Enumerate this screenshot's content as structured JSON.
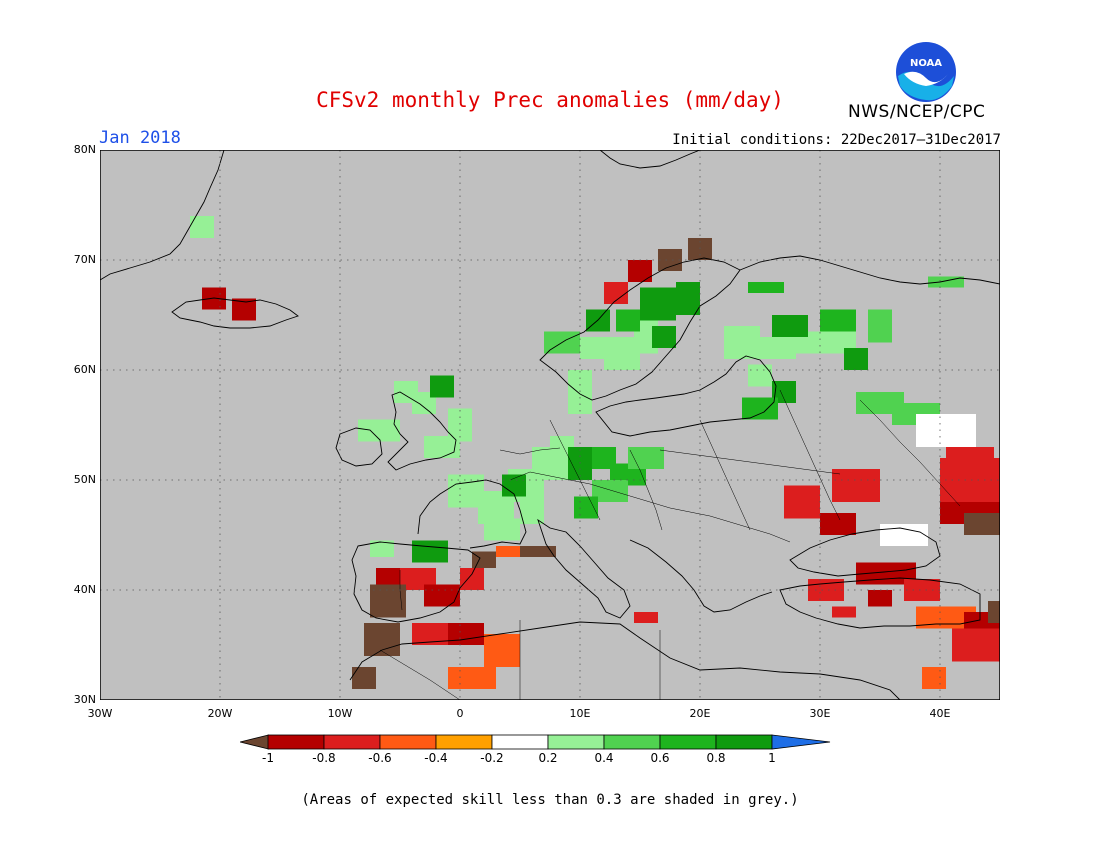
{
  "title": "CFSv2 monthly Prec anomalies (mm/day)",
  "agency": "NWS/NCEP/CPC",
  "logo_text": "NOAA",
  "month": "Jan 2018",
  "initial_conditions": "Initial conditions: 22Dec2017–31Dec2017",
  "note": "(Areas of expected skill less than 0.3 are shaded in grey.)",
  "map": {
    "lon_range": [
      -30,
      45
    ],
    "lat_range": [
      30,
      80
    ],
    "lat_ticks": [
      {
        "value": 80,
        "label": "80N"
      },
      {
        "value": 70,
        "label": "70N"
      },
      {
        "value": 60,
        "label": "60N"
      },
      {
        "value": 50,
        "label": "50N"
      },
      {
        "value": 40,
        "label": "40N"
      },
      {
        "value": 30,
        "label": "30N"
      }
    ],
    "lon_ticks": [
      {
        "value": -30,
        "label": "30W"
      },
      {
        "value": -20,
        "label": "20W"
      },
      {
        "value": -10,
        "label": "10W"
      },
      {
        "value": 0,
        "label": "0"
      },
      {
        "value": 10,
        "label": "10E"
      },
      {
        "value": 20,
        "label": "20E"
      },
      {
        "value": 30,
        "label": "30E"
      },
      {
        "value": 40,
        "label": "40E"
      }
    ],
    "grey_color": "#c0c0c0"
  },
  "colorbar": {
    "levels": [
      "-1",
      "-0.8",
      "-0.6",
      "-0.4",
      "-0.2",
      "0.2",
      "0.4",
      "0.6",
      "0.8",
      "1"
    ],
    "colors": [
      "#6b4530",
      "#b40000",
      "#dc1e1e",
      "#ff5a14",
      "#ffa000",
      "#ffffff",
      "#96f096",
      "#50d250",
      "#1eb41e",
      "#0f9b0f",
      "#1e6ee6"
    ]
  },
  "anomaly_cells": [
    {
      "lon": -22.5,
      "lat": 72,
      "w": 2,
      "h": 2,
      "cls": 1
    },
    {
      "lon": -21.5,
      "lat": 65.5,
      "w": 2,
      "h": 2,
      "cls": -4
    },
    {
      "lon": -19,
      "lat": 64.5,
      "w": 2,
      "h": 2,
      "cls": -4
    },
    {
      "lon": -5.5,
      "lat": 57,
      "w": 2,
      "h": 2,
      "cls": 1
    },
    {
      "lon": -4,
      "lat": 56,
      "w": 2,
      "h": 2,
      "cls": 1
    },
    {
      "lon": -2.5,
      "lat": 57.5,
      "w": 2,
      "h": 2,
      "cls": 4
    },
    {
      "lon": -8.5,
      "lat": 53.5,
      "w": 2,
      "h": 2,
      "cls": 1
    },
    {
      "lon": -7,
      "lat": 53.5,
      "w": 2,
      "h": 2,
      "cls": 1
    },
    {
      "lon": -3,
      "lat": 52,
      "w": 3,
      "h": 2,
      "cls": 1
    },
    {
      "lon": -1,
      "lat": 53.5,
      "w": 2,
      "h": 3,
      "cls": 1
    },
    {
      "lon": -1,
      "lat": 47.5,
      "w": 3,
      "h": 3,
      "cls": 1
    },
    {
      "lon": 1.5,
      "lat": 46,
      "w": 3,
      "h": 3,
      "cls": 1
    },
    {
      "lon": 4,
      "lat": 48,
      "w": 3,
      "h": 3,
      "cls": 1
    },
    {
      "lon": 6,
      "lat": 50,
      "w": 3,
      "h": 3,
      "cls": 1
    },
    {
      "lon": 2,
      "lat": 44.5,
      "w": 3,
      "h": 2,
      "cls": 1
    },
    {
      "lon": 5,
      "lat": 46,
      "w": 2,
      "h": 2,
      "cls": 1
    },
    {
      "lon": 7.5,
      "lat": 52,
      "w": 2,
      "h": 2,
      "cls": 1
    },
    {
      "lon": 3.5,
      "lat": 48.5,
      "w": 2,
      "h": 2,
      "cls": 4
    },
    {
      "lon": 9,
      "lat": 50,
      "w": 2,
      "h": 3,
      "cls": 4
    },
    {
      "lon": 11,
      "lat": 51,
      "w": 2,
      "h": 2,
      "cls": 3
    },
    {
      "lon": 12.5,
      "lat": 49.5,
      "w": 3,
      "h": 2,
      "cls": 3
    },
    {
      "lon": 11,
      "lat": 48,
      "w": 3,
      "h": 2,
      "cls": 2
    },
    {
      "lon": 14,
      "lat": 51,
      "w": 3,
      "h": 2,
      "cls": 2
    },
    {
      "lon": 9.5,
      "lat": 46.5,
      "w": 2,
      "h": 2,
      "cls": 3
    },
    {
      "lon": 9,
      "lat": 56,
      "w": 2,
      "h": 2,
      "cls": 1
    },
    {
      "lon": 9,
      "lat": 58,
      "w": 2,
      "h": 2,
      "cls": 1
    },
    {
      "lon": 12,
      "lat": 60,
      "w": 3,
      "h": 3,
      "cls": 1
    },
    {
      "lon": 10,
      "lat": 61,
      "w": 3,
      "h": 2,
      "cls": 1
    },
    {
      "lon": 14.5,
      "lat": 61.5,
      "w": 2,
      "h": 4,
      "cls": 1
    },
    {
      "lon": 16,
      "lat": 62,
      "w": 2,
      "h": 2,
      "cls": 4
    },
    {
      "lon": 15,
      "lat": 64.5,
      "w": 3,
      "h": 3,
      "cls": 4
    },
    {
      "lon": 18,
      "lat": 65,
      "w": 2,
      "h": 3,
      "cls": 4
    },
    {
      "lon": 13,
      "lat": 63.5,
      "w": 2,
      "h": 2,
      "cls": 3
    },
    {
      "lon": 7,
      "lat": 61.5,
      "w": 3,
      "h": 2,
      "cls": 2
    },
    {
      "lon": 10.5,
      "lat": 63.5,
      "w": 2,
      "h": 2,
      "cls": 4
    },
    {
      "lon": 12,
      "lat": 66,
      "w": 2,
      "h": 2,
      "cls": -3
    },
    {
      "lon": 14,
      "lat": 68,
      "w": 2,
      "h": 2,
      "cls": -4
    },
    {
      "lon": 16.5,
      "lat": 69,
      "w": 2,
      "h": 2,
      "cls": -5
    },
    {
      "lon": 19,
      "lat": 70,
      "w": 2,
      "h": 2,
      "cls": -5
    },
    {
      "lon": 22,
      "lat": 61,
      "w": 3,
      "h": 3,
      "cls": 1
    },
    {
      "lon": 25,
      "lat": 61,
      "w": 3,
      "h": 2,
      "cls": 1
    },
    {
      "lon": 28,
      "lat": 61.5,
      "w": 3,
      "h": 2,
      "cls": 1
    },
    {
      "lon": 31,
      "lat": 61.5,
      "w": 2,
      "h": 2,
      "cls": 1
    },
    {
      "lon": 26,
      "lat": 63,
      "w": 3,
      "h": 2,
      "cls": 4
    },
    {
      "lon": 30,
      "lat": 63.5,
      "w": 3,
      "h": 2,
      "cls": 3
    },
    {
      "lon": 34,
      "lat": 62.5,
      "w": 2,
      "h": 3,
      "cls": 2
    },
    {
      "lon": 32,
      "lat": 60,
      "w": 2,
      "h": 2,
      "cls": 4
    },
    {
      "lon": 24,
      "lat": 67,
      "w": 3,
      "h": 1,
      "cls": 3
    },
    {
      "lon": 24,
      "lat": 58.5,
      "w": 2,
      "h": 2,
      "cls": 1
    },
    {
      "lon": 26,
      "lat": 57,
      "w": 2,
      "h": 2,
      "cls": 4
    },
    {
      "lon": 23.5,
      "lat": 55.5,
      "w": 3,
      "h": 2,
      "cls": 3
    },
    {
      "lon": 33,
      "lat": 56,
      "w": 4,
      "h": 2,
      "cls": 2
    },
    {
      "lon": 36,
      "lat": 55,
      "w": 4,
      "h": 2,
      "cls": 2
    },
    {
      "lon": 39,
      "lat": 67.5,
      "w": 3,
      "h": 1,
      "cls": 2
    },
    {
      "lon": 27,
      "lat": 46.5,
      "w": 3,
      "h": 3,
      "cls": -3
    },
    {
      "lon": 31,
      "lat": 48,
      "w": 4,
      "h": 3,
      "cls": -3
    },
    {
      "lon": 30,
      "lat": 45,
      "w": 3,
      "h": 2,
      "cls": -4
    },
    {
      "lon": 40,
      "lat": 48,
      "w": 5,
      "h": 4,
      "cls": -3
    },
    {
      "lon": 43,
      "lat": 49,
      "w": 3,
      "h": 3,
      "cls": -3
    },
    {
      "lon": 40,
      "lat": 46,
      "w": 6,
      "h": 2,
      "cls": -4
    },
    {
      "lon": 42,
      "lat": 45,
      "w": 4,
      "h": 2,
      "cls": -5
    },
    {
      "lon": 40.5,
      "lat": 51,
      "w": 4,
      "h": 2,
      "cls": -3
    },
    {
      "lon": 29,
      "lat": 39,
      "w": 3,
      "h": 2,
      "cls": -3
    },
    {
      "lon": 33,
      "lat": 40.5,
      "w": 5,
      "h": 2,
      "cls": -4
    },
    {
      "lon": 37,
      "lat": 39,
      "w": 3,
      "h": 2,
      "cls": -3
    },
    {
      "lon": 34,
      "lat": 38.5,
      "w": 2,
      "h": 1.5,
      "cls": -4
    },
    {
      "lon": 31,
      "lat": 37.5,
      "w": 2,
      "h": 1,
      "cls": -3
    },
    {
      "lon": 38,
      "lat": 36.5,
      "w": 5,
      "h": 2,
      "cls": -2
    },
    {
      "lon": 42,
      "lat": 36,
      "w": 3,
      "h": 2,
      "cls": -4
    },
    {
      "lon": 41,
      "lat": 33.5,
      "w": 4,
      "h": 3,
      "cls": -3
    },
    {
      "lon": 38.5,
      "lat": 31,
      "w": 2,
      "h": 2,
      "cls": -2
    },
    {
      "lon": 44,
      "lat": 37,
      "w": 2,
      "h": 2,
      "cls": -5
    },
    {
      "lon": -7.5,
      "lat": 43,
      "w": 2,
      "h": 1.5,
      "cls": 1
    },
    {
      "lon": -4,
      "lat": 42.5,
      "w": 3,
      "h": 2,
      "cls": 4
    },
    {
      "lon": -7,
      "lat": 40,
      "w": 2,
      "h": 2,
      "cls": -4
    },
    {
      "lon": -5,
      "lat": 40,
      "w": 3,
      "h": 2,
      "cls": -3
    },
    {
      "lon": -3,
      "lat": 38.5,
      "w": 3,
      "h": 2,
      "cls": -4
    },
    {
      "lon": 0,
      "lat": 40,
      "w": 2,
      "h": 2,
      "cls": -3
    },
    {
      "lon": 1,
      "lat": 42,
      "w": 2,
      "h": 1.5,
      "cls": -5
    },
    {
      "lon": 5,
      "lat": 43,
      "w": 3,
      "h": 1,
      "cls": -5
    },
    {
      "lon": 3,
      "lat": 43,
      "w": 2,
      "h": 1,
      "cls": -2
    },
    {
      "lon": -7.5,
      "lat": 37.5,
      "w": 3,
      "h": 3,
      "cls": -5
    },
    {
      "lon": -8,
      "lat": 34,
      "w": 3,
      "h": 3,
      "cls": -5
    },
    {
      "lon": -9,
      "lat": 31,
      "w": 2,
      "h": 2,
      "cls": -5
    },
    {
      "lon": -4,
      "lat": 35,
      "w": 3,
      "h": 2,
      "cls": -3
    },
    {
      "lon": -1,
      "lat": 35,
      "w": 3,
      "h": 2,
      "cls": -4
    },
    {
      "lon": 2,
      "lat": 33,
      "w": 3,
      "h": 3,
      "cls": -2
    },
    {
      "lon": -1,
      "lat": 31,
      "w": 4,
      "h": 2,
      "cls": -2
    },
    {
      "lon": 14.5,
      "lat": 37,
      "w": 2,
      "h": 1,
      "cls": -3
    },
    {
      "lon": 35,
      "lat": 44,
      "w": 4,
      "h": 2,
      "cls": 0
    },
    {
      "lon": 38,
      "lat": 53,
      "w": 5,
      "h": 3,
      "cls": 0
    }
  ]
}
